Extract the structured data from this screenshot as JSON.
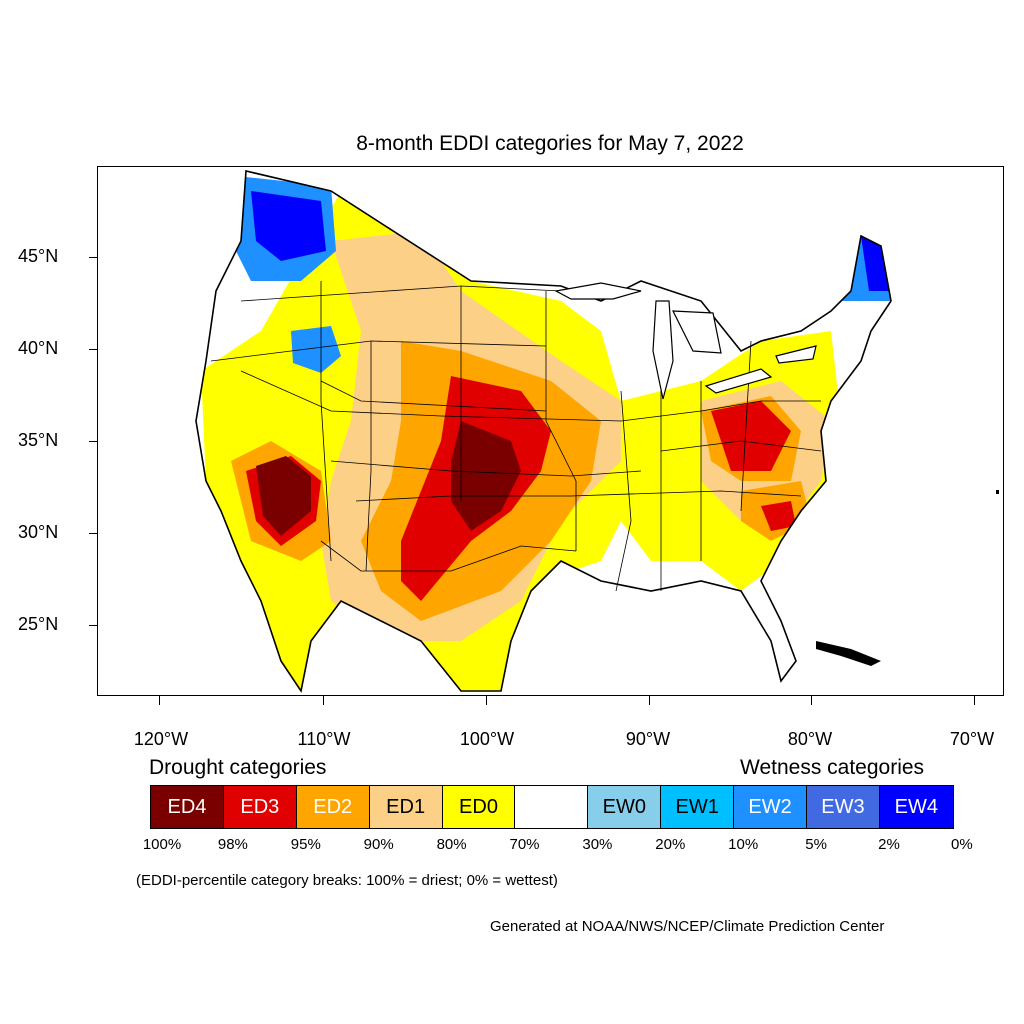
{
  "title": "8-month EDDI categories for May 7, 2022",
  "lat_labels": [
    "45°N",
    "40°N",
    "35°N",
    "30°N",
    "25°N"
  ],
  "lon_labels": [
    "120°W",
    "110°W",
    "100°W",
    "90°W",
    "80°W",
    "70°W"
  ],
  "legend": {
    "drought_heading": "Drought categories",
    "wetness_heading": "Wetness categories",
    "categories": [
      {
        "label": "ED4",
        "color": "#7a0000",
        "text_color": "#ffffff"
      },
      {
        "label": "ED3",
        "color": "#e00000",
        "text_color": "#ffffff"
      },
      {
        "label": "ED2",
        "color": "#ffa500",
        "text_color": "#ffffff"
      },
      {
        "label": "ED1",
        "color": "#fdd087",
        "text_color": "#000000"
      },
      {
        "label": "ED0",
        "color": "#ffff00",
        "text_color": "#000000"
      },
      {
        "label": "",
        "color": "#ffffff",
        "text_color": "#000000"
      },
      {
        "label": "EW0",
        "color": "#87ceeb",
        "text_color": "#000000"
      },
      {
        "label": "EW1",
        "color": "#00bfff",
        "text_color": "#000000"
      },
      {
        "label": "EW2",
        "color": "#1e90ff",
        "text_color": "#ffffff"
      },
      {
        "label": "EW3",
        "color": "#4169e1",
        "text_color": "#ffffff"
      },
      {
        "label": "EW4",
        "color": "#0000ff",
        "text_color": "#ffffff"
      }
    ],
    "percentiles": [
      "100%",
      "98%",
      "95%",
      "90%",
      "80%",
      "70%",
      "30%",
      "20%",
      "10%",
      "5%",
      "2%",
      "0%"
    ]
  },
  "note": "(EDDI-percentile category breaks: 100% = driest; 0% = wettest)",
  "credit": "Generated at NOAA/NWS/NCEP/Climate Prediction Center"
}
